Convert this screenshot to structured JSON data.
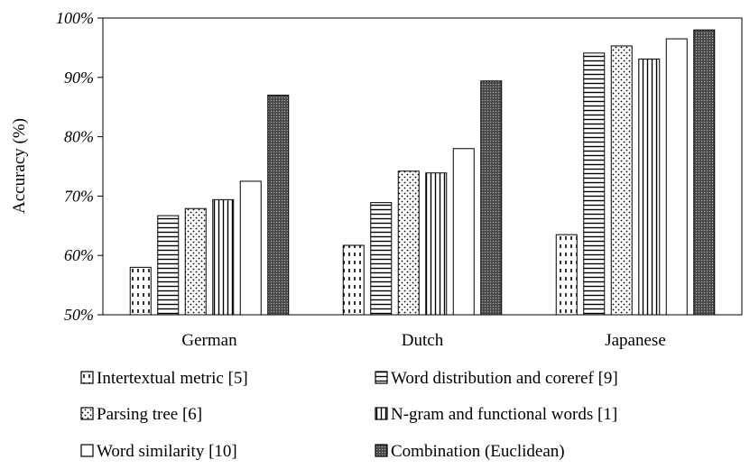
{
  "chart_data": {
    "type": "bar",
    "title": "",
    "xlabel": "",
    "ylabel": "Accuracy (%)",
    "ylim": [
      50,
      100
    ],
    "yticks": [
      50,
      60,
      70,
      80,
      90,
      100
    ],
    "ytick_labels": [
      "50%",
      "60%",
      "70%",
      "80%",
      "90%",
      "100%"
    ],
    "grid": false,
    "legend_position": "bottom",
    "categories": [
      "German",
      "Dutch",
      "Japanese"
    ],
    "series": [
      {
        "name": "Intertextual metric [5]",
        "pattern": "dashes",
        "values": [
          58.0,
          61.7,
          63.5
        ]
      },
      {
        "name": "Word distribution and coreref [9]",
        "pattern": "hlines",
        "values": [
          66.7,
          68.9,
          94.1
        ]
      },
      {
        "name": "Parsing tree [6]",
        "pattern": "dots",
        "values": [
          67.9,
          74.2,
          95.3
        ]
      },
      {
        "name": "N-gram and functional words [1]",
        "pattern": "vlines",
        "values": [
          69.4,
          73.9,
          93.1
        ]
      },
      {
        "name": "Word similarity [10]",
        "pattern": "white",
        "values": [
          72.5,
          78.0,
          96.5
        ]
      },
      {
        "name": "Combination (Euclidean)",
        "pattern": "dark",
        "values": [
          87.0,
          89.4,
          98.0
        ]
      }
    ]
  }
}
